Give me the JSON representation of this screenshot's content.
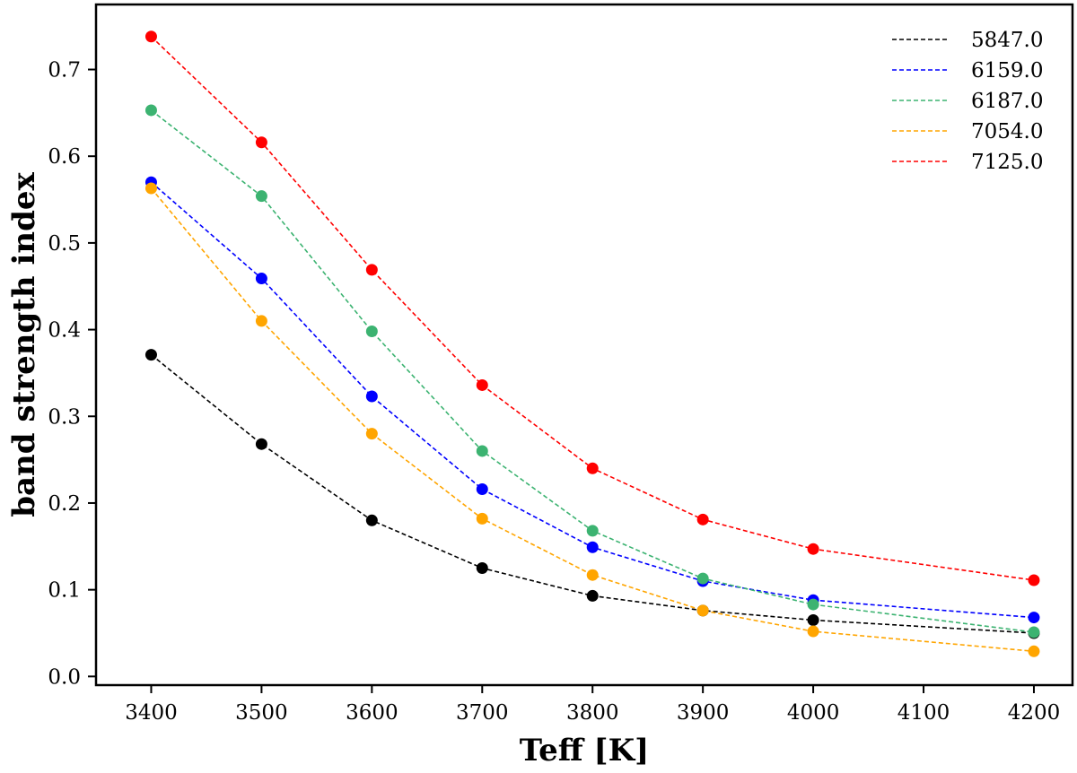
{
  "chart_data": {
    "type": "line",
    "title": "",
    "xlabel": "Teff [K]",
    "ylabel": "band strength index",
    "xlim": [
      3350,
      4235
    ],
    "ylim": [
      -0.01,
      0.775
    ],
    "xticks": [
      3400,
      3500,
      3600,
      3700,
      3800,
      3900,
      4000,
      4100,
      4200
    ],
    "yticks": [
      0.0,
      0.1,
      0.2,
      0.3,
      0.4,
      0.5,
      0.6,
      0.7
    ],
    "ytick_labels": [
      "0.0",
      "0.1",
      "0.2",
      "0.3",
      "0.4",
      "0.5",
      "0.6",
      "0.7"
    ],
    "grid": false,
    "legend_position": "top-right",
    "x": [
      3400,
      3500,
      3600,
      3700,
      3800,
      3900,
      4000,
      4200
    ],
    "series": [
      {
        "name": "5847.0",
        "color": "#000000",
        "values": [
          0.371,
          0.268,
          0.18,
          0.125,
          0.093,
          0.076,
          0.065,
          0.05
        ]
      },
      {
        "name": "6159.0",
        "color": "#0000ff",
        "values": [
          0.57,
          0.459,
          0.323,
          0.216,
          0.149,
          0.11,
          0.088,
          0.068
        ]
      },
      {
        "name": "6187.0",
        "color": "#3cb371",
        "values": [
          0.653,
          0.554,
          0.398,
          0.26,
          0.168,
          0.113,
          0.083,
          0.051
        ]
      },
      {
        "name": "7054.0",
        "color": "#ffa500",
        "values": [
          0.563,
          0.41,
          0.28,
          0.182,
          0.117,
          0.076,
          0.052,
          0.029
        ]
      },
      {
        "name": "7125.0",
        "color": "#ff0000",
        "values": [
          0.738,
          0.616,
          0.469,
          0.336,
          0.24,
          0.181,
          0.147,
          0.111
        ]
      }
    ]
  }
}
